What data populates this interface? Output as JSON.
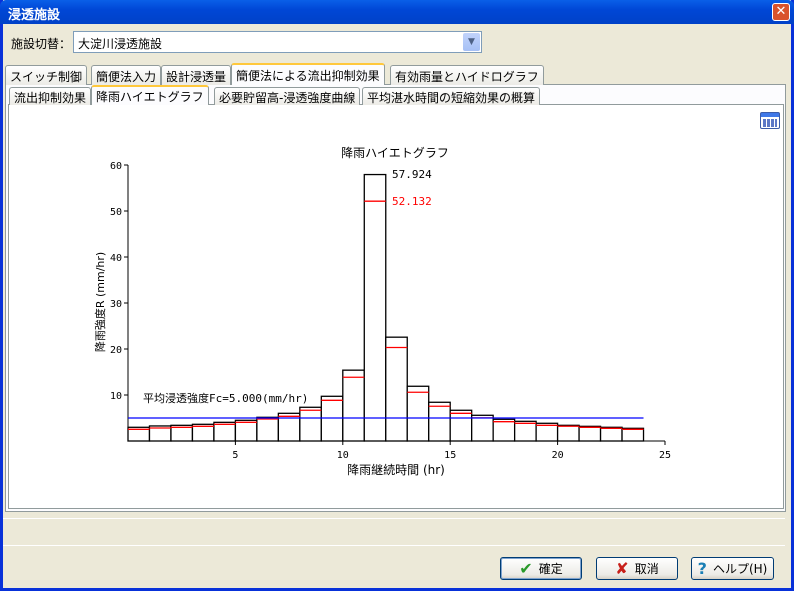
{
  "window": {
    "title": "浸透施設",
    "close": "✕"
  },
  "facility": {
    "label": "施設切替：",
    "value": "大淀川浸透施設"
  },
  "tabs": [
    {
      "label": "スイッチ制御"
    },
    {
      "label": "簡便法入力"
    },
    {
      "label": "設計浸透量"
    },
    {
      "label": "簡便法による流出抑制効果",
      "active": true
    },
    {
      "label": "有効雨量とハイドログラフ"
    }
  ],
  "subtabs": [
    {
      "label": "流出抑制効果"
    },
    {
      "label": "降雨ハイエトグラフ",
      "active": true
    },
    {
      "label": "必要貯留高-浸透強度曲線"
    },
    {
      "label": "平均湛水時間の短縮効果の概算"
    }
  ],
  "buttons": {
    "ok": "確定",
    "cancel": "取消",
    "help": "ヘルプ(H)"
  },
  "chart_data": {
    "type": "bar",
    "title": "降雨ハイエトグラフ",
    "xlabel": "降雨継続時間 (hr)",
    "ylabel": "降雨強度R (mm/hr)",
    "xlim": [
      0,
      25
    ],
    "ylim": [
      0,
      60
    ],
    "xticks": [
      5,
      10,
      15,
      20,
      25
    ],
    "yticks": [
      10,
      20,
      30,
      40,
      50,
      60
    ],
    "series": [
      {
        "color": "#000000",
        "values": [
          2.98,
          3.27,
          3.41,
          3.63,
          4.06,
          4.5,
          5.15,
          6.02,
          7.33,
          9.72,
          15.4,
          57.924,
          22.57,
          11.9,
          8.42,
          6.68,
          5.59,
          4.72,
          4.28,
          3.85,
          3.41,
          3.19,
          2.98,
          2.76
        ]
      },
      {
        "color": "#FF0000",
        "values": [
          2.54,
          2.83,
          2.98,
          3.19,
          3.63,
          4.06,
          4.79,
          5.37,
          6.68,
          8.85,
          13.86,
          52.132,
          20.32,
          10.6,
          7.55,
          6.02,
          5.03,
          4.2,
          3.85,
          3.41,
          3.2,
          2.98,
          2.76,
          2.54
        ]
      }
    ],
    "peak_labels": [
      "57.924",
      "52.132"
    ],
    "fc_line": {
      "value": 5.0,
      "color": "#0000FF",
      "label": "平均浸透強度Fc=5.000(mm/hr)"
    }
  }
}
